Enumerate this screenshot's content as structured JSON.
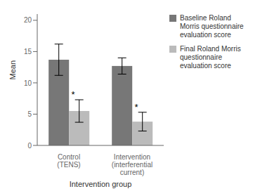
{
  "chart_data": {
    "type": "bar",
    "categories": [
      "Control\n(TENS)",
      "Intervention\n(interferential\ncurrent)"
    ],
    "series": [
      {
        "name": "Baseline Roland\nMorris questionnaire\nevaluation score",
        "color": "#777777",
        "values": [
          13.7,
          12.7
        ],
        "errors": [
          2.5,
          1.3
        ]
      },
      {
        "name": "Final Roland Morris\nquestionnaire\nevaluation score",
        "color": "#bbbbbb",
        "values": [
          5.5,
          3.8
        ],
        "errors": [
          1.8,
          1.5
        ],
        "annotations": [
          "*",
          "*"
        ]
      }
    ],
    "xlabel": "Intervention group",
    "ylabel": "Mean",
    "ylim": [
      0,
      21
    ],
    "yticks": [
      0,
      5,
      10,
      15,
      20
    ],
    "grid": false,
    "legend": "right"
  }
}
